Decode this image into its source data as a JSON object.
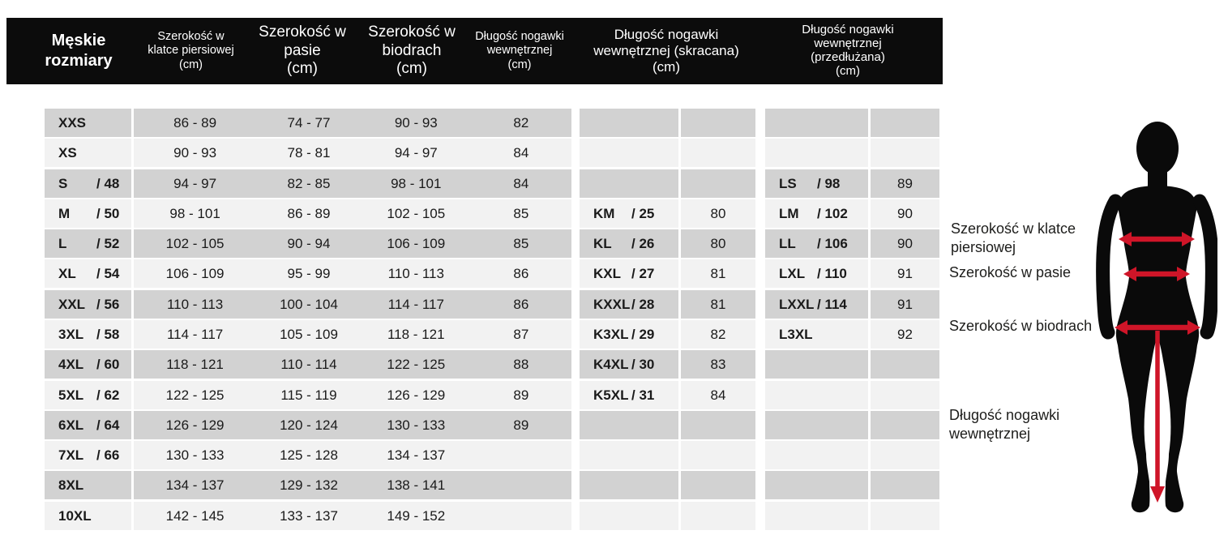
{
  "header": {
    "size_column": {
      "lines": [
        "Męskie",
        "rozmiary"
      ]
    },
    "columns": [
      {
        "id": "chest",
        "lines": [
          "Szerokość w",
          "klatce piersiowej",
          "(cm)"
        ]
      },
      {
        "id": "waist",
        "lines": [
          "Szerokość w",
          "pasie",
          "(cm)"
        ]
      },
      {
        "id": "hips",
        "lines": [
          "Szerokość w",
          "biodrach",
          "(cm)"
        ]
      },
      {
        "id": "inseam",
        "lines": [
          "Długość nogawki",
          "wewnętrznej",
          "(cm)"
        ]
      },
      {
        "id": "inseam_short",
        "lines": [
          "Długość nogawki",
          "wewnętrznej (skracana)",
          "(cm)"
        ]
      },
      {
        "id": "inseam_long",
        "lines": [
          "Długość nogawki",
          "wewnętrznej",
          "(przedłużana)",
          "(cm)"
        ]
      }
    ]
  },
  "rows": [
    {
      "size": "XXS",
      "size_alt": "",
      "chest": "86 - 89",
      "waist": "74 - 77",
      "hips": "90 - 93",
      "inseam": "82",
      "short_code": "",
      "short_alt": "",
      "short_val": "",
      "long_code": "",
      "long_alt": "",
      "long_val": ""
    },
    {
      "size": "XS",
      "size_alt": "",
      "chest": "90 - 93",
      "waist": "78 - 81",
      "hips": "94 - 97",
      "inseam": "84",
      "short_code": "",
      "short_alt": "",
      "short_val": "",
      "long_code": "",
      "long_alt": "",
      "long_val": ""
    },
    {
      "size": "S",
      "size_alt": "/ 48",
      "chest": "94 - 97",
      "waist": "82 - 85",
      "hips": "98 - 101",
      "inseam": "84",
      "short_code": "",
      "short_alt": "",
      "short_val": "",
      "long_code": "LS",
      "long_alt": "/ 98",
      "long_val": "89"
    },
    {
      "size": "M",
      "size_alt": "/ 50",
      "chest": "98 - 101",
      "waist": "86 - 89",
      "hips": "102 - 105",
      "inseam": "85",
      "short_code": "KM",
      "short_alt": "/ 25",
      "short_val": "80",
      "long_code": "LM",
      "long_alt": "/ 102",
      "long_val": "90"
    },
    {
      "size": "L",
      "size_alt": "/ 52",
      "chest": "102 - 105",
      "waist": "90 - 94",
      "hips": "106 - 109",
      "inseam": "85",
      "short_code": "KL",
      "short_alt": "/ 26",
      "short_val": "80",
      "long_code": "LL",
      "long_alt": "/ 106",
      "long_val": "90"
    },
    {
      "size": "XL",
      "size_alt": "/ 54",
      "chest": "106 - 109",
      "waist": "95 - 99",
      "hips": "110 - 113",
      "inseam": "86",
      "short_code": "KXL",
      "short_alt": "/ 27",
      "short_val": "81",
      "long_code": "LXL",
      "long_alt": "/ 110",
      "long_val": "91"
    },
    {
      "size": "XXL",
      "size_alt": "/ 56",
      "chest": "110 - 113",
      "waist": "100 - 104",
      "hips": "114 - 117",
      "inseam": "86",
      "short_code": "KXXL",
      "short_alt": "/ 28",
      "short_val": "81",
      "long_code": "LXXL",
      "long_alt": "/ 114",
      "long_val": "91"
    },
    {
      "size": "3XL",
      "size_alt": "/ 58",
      "chest": "114 - 117",
      "waist": "105 - 109",
      "hips": "118 - 121",
      "inseam": "87",
      "short_code": "K3XL",
      "short_alt": "/ 29",
      "short_val": "82",
      "long_code": "L3XL",
      "long_alt": "",
      "long_val": "92"
    },
    {
      "size": "4XL",
      "size_alt": "/ 60",
      "chest": "118 - 121",
      "waist": "110 - 114",
      "hips": "122 - 125",
      "inseam": "88",
      "short_code": "K4XL",
      "short_alt": "/ 30",
      "short_val": "83",
      "long_code": "",
      "long_alt": "",
      "long_val": ""
    },
    {
      "size": "5XL",
      "size_alt": "/ 62",
      "chest": "122 - 125",
      "waist": "115 - 119",
      "hips": "126 - 129",
      "inseam": "89",
      "short_code": "K5XL",
      "short_alt": "/ 31",
      "short_val": "84",
      "long_code": "",
      "long_alt": "",
      "long_val": ""
    },
    {
      "size": "6XL",
      "size_alt": "/ 64",
      "chest": "126 - 129",
      "waist": "120 - 124",
      "hips": "130 - 133",
      "inseam": "89",
      "short_code": "",
      "short_alt": "",
      "short_val": "",
      "long_code": "",
      "long_alt": "",
      "long_val": ""
    },
    {
      "size": "7XL",
      "size_alt": "/ 66",
      "chest": "130 - 133",
      "waist": "125 - 128",
      "hips": "134 - 137",
      "inseam": "",
      "short_code": "",
      "short_alt": "",
      "short_val": "",
      "long_code": "",
      "long_alt": "",
      "long_val": ""
    },
    {
      "size": "8XL",
      "size_alt": "",
      "chest": "134 - 137",
      "waist": "129 - 132",
      "hips": "138 - 141",
      "inseam": "",
      "short_code": "",
      "short_alt": "",
      "short_val": "",
      "long_code": "",
      "long_alt": "",
      "long_val": ""
    },
    {
      "size": "10XL",
      "size_alt": "",
      "chest": "142 - 145",
      "waist": "133 - 137",
      "hips": "149 - 152",
      "inseam": "",
      "short_code": "",
      "short_alt": "",
      "short_val": "",
      "long_code": "",
      "long_alt": "",
      "long_val": ""
    }
  ],
  "figure": {
    "labels": {
      "chest": "Szerokość w klatce piersiowej",
      "waist": "Szerokość w pasie",
      "hips": "Szerokość w biodrach",
      "inseam": "Długość nogawki wewnętrznej"
    }
  },
  "colors": {
    "header_bg": "#0c0c0c",
    "row_gray": "#d2d2d2",
    "row_light": "#f2f2f2",
    "accent_red": "#cf1528",
    "silhouette": "#0a0a0a"
  }
}
